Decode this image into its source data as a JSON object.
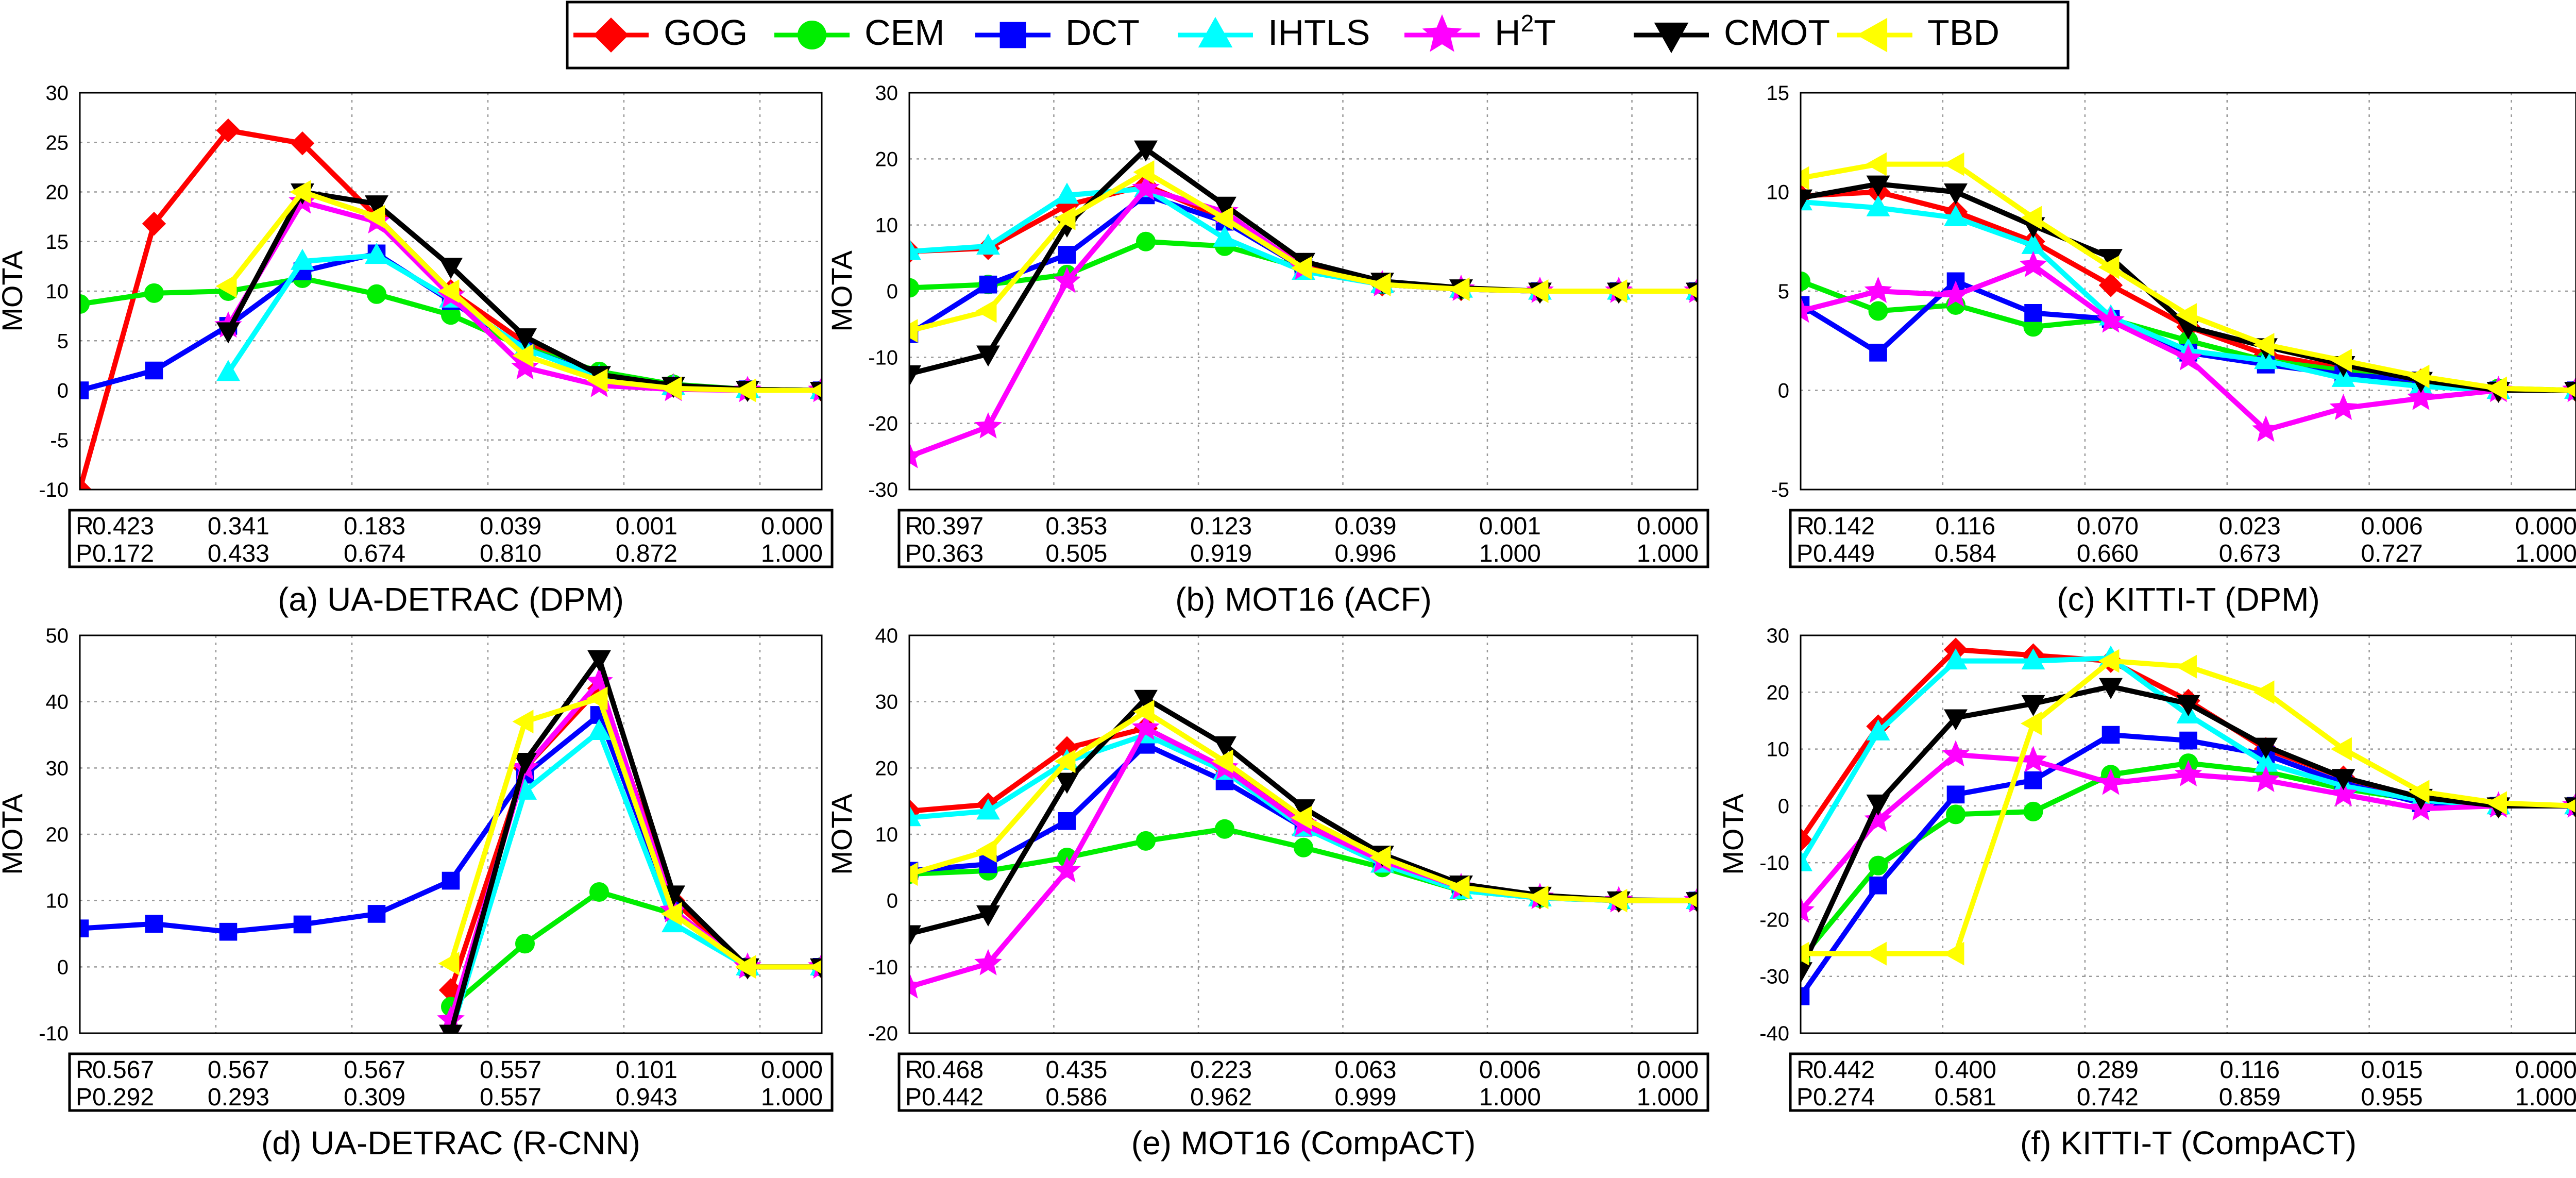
{
  "legend": {
    "entries": [
      {
        "name": "GOG",
        "color": "#ff0000",
        "marker": "diamond"
      },
      {
        "name": "CEM",
        "color": "#00ee00",
        "marker": "circle"
      },
      {
        "name": "DCT",
        "color": "#0000ff",
        "marker": "square"
      },
      {
        "name": "IHTLS",
        "color": "#00ffff",
        "marker": "triangle-up"
      },
      {
        "name": "H2T",
        "base": "H",
        "sup": "2",
        "tail": "T",
        "color": "#ff00ff",
        "marker": "star"
      },
      {
        "name": "CMOT",
        "color": "#000000",
        "marker": "triangle-down"
      },
      {
        "name": "TBD",
        "color": "#ffff00",
        "marker": "triangle-left"
      }
    ]
  },
  "chart_data": [
    {
      "type": "line",
      "title": "(a) UA-DETRAC (DPM)",
      "ylabel": "MOTA",
      "ylim": [
        -10,
        30
      ],
      "yticks": [
        -10,
        -5,
        0,
        5,
        10,
        15,
        20,
        25,
        30
      ],
      "x": [
        1,
        2,
        3,
        4,
        5,
        6,
        7,
        8,
        9,
        10,
        11
      ],
      "xlim": [
        1,
        11
      ],
      "xgrid": [
        1,
        2.833,
        4.667,
        6.5,
        8.333,
        10.167
      ],
      "table": {
        "R": {
          "label": "R",
          "values": [
            "0.423",
            "0.341",
            "0.183",
            "0.039",
            "0.001",
            "0.000"
          ]
        },
        "P": {
          "label": "P",
          "values": [
            "0.172",
            "0.433",
            "0.674",
            "0.810",
            "0.872",
            "1.000"
          ]
        }
      },
      "series": [
        {
          "name": "GOG",
          "values": [
            -10,
            16.8,
            26.2,
            24.9,
            17.5,
            10,
            4.8,
            1.6,
            0.5,
            0.1,
            0
          ]
        },
        {
          "name": "CEM",
          "values": [
            8.7,
            9.8,
            10,
            11.3,
            9.7,
            7.6,
            4.3,
            1.9,
            0.6,
            0.1,
            0
          ]
        },
        {
          "name": "DCT",
          "values": [
            0,
            2,
            6.5,
            12,
            13.8,
            9,
            4.2,
            1.5,
            0.4,
            0.1,
            0
          ]
        },
        {
          "name": "IHTLS",
          "values": [
            null,
            null,
            1.8,
            13,
            13.6,
            9.2,
            4.2,
            1.4,
            0.4,
            0.1,
            0
          ]
        },
        {
          "name": "H2T",
          "values": [
            null,
            null,
            6.5,
            19,
            17,
            9.5,
            2.3,
            0.5,
            0.1,
            0,
            0
          ]
        },
        {
          "name": "CMOT",
          "values": [
            null,
            null,
            6,
            20,
            18.8,
            12.5,
            5.4,
            1.6,
            0.5,
            0.1,
            0
          ]
        },
        {
          "name": "TBD",
          "values": [
            null,
            null,
            10.5,
            20,
            17.5,
            10,
            3.5,
            1,
            0.2,
            0,
            0
          ]
        }
      ]
    },
    {
      "type": "line",
      "title": "(b) MOT16 (ACF)",
      "ylabel": "MOTA",
      "ylim": [
        -30,
        30
      ],
      "yticks": [
        -30,
        -20,
        -10,
        0,
        10,
        20,
        30
      ],
      "x": [
        1,
        2,
        3,
        4,
        5,
        6,
        7,
        8,
        9,
        10,
        11
      ],
      "xlim": [
        1,
        11
      ],
      "xgrid": [
        1,
        2.833,
        4.667,
        6.5,
        8.333,
        10.167
      ],
      "table": {
        "R": {
          "label": "R",
          "values": [
            "0.397",
            "0.353",
            "0.123",
            "0.039",
            "0.001",
            "0.000"
          ]
        },
        "P": {
          "label": "P",
          "values": [
            "0.363",
            "0.505",
            "0.919",
            "0.996",
            "1.000",
            "1.000"
          ]
        }
      },
      "series": [
        {
          "name": "GOG",
          "values": [
            6,
            6.5,
            13,
            16,
            11,
            4,
            1,
            0.3,
            0,
            0,
            0
          ]
        },
        {
          "name": "CEM",
          "values": [
            0.5,
            1,
            2.5,
            7.5,
            6.8,
            3.5,
            1,
            0.3,
            0,
            0,
            0
          ]
        },
        {
          "name": "DCT",
          "values": [
            -6.5,
            1,
            5.5,
            14.5,
            10.5,
            3.5,
            1,
            0.3,
            0,
            0,
            0
          ]
        },
        {
          "name": "IHTLS",
          "values": [
            6,
            6.8,
            14.5,
            15.5,
            8,
            3,
            1,
            0.3,
            0,
            0,
            0
          ]
        },
        {
          "name": "H2T",
          "values": [
            -25,
            -20.5,
            1.5,
            15.5,
            12,
            3.5,
            1,
            0.3,
            0,
            0,
            0
          ]
        },
        {
          "name": "CMOT",
          "values": [
            -12.5,
            -9.5,
            10,
            21.5,
            13,
            4.5,
            1.5,
            0.5,
            0,
            0,
            0
          ]
        },
        {
          "name": "TBD",
          "values": [
            -6,
            -3,
            11,
            18,
            11,
            3.5,
            1,
            0.3,
            0,
            0,
            0
          ]
        }
      ]
    },
    {
      "type": "line",
      "title": "(c) KITTI-T (DPM)",
      "ylabel": "",
      "ylim": [
        -5,
        15
      ],
      "yticks": [
        -5,
        0,
        5,
        10,
        15
      ],
      "x": [
        1,
        2,
        3,
        4,
        5,
        6,
        7,
        8,
        9,
        10,
        11
      ],
      "xlim": [
        1,
        11
      ],
      "xgrid": [
        1,
        2.833,
        4.667,
        6.5,
        8.333,
        10.167
      ],
      "table": {
        "R": {
          "label": "R",
          "values": [
            "0.142",
            "0.116",
            "0.070",
            "0.023",
            "0.006",
            "0.000"
          ]
        },
        "P": {
          "label": "P",
          "values": [
            "0.449",
            "0.584",
            "0.660",
            "0.673",
            "0.727",
            "1.000"
          ]
        }
      },
      "series": [
        {
          "name": "GOG",
          "values": [
            9.8,
            10,
            9,
            7.5,
            5.3,
            3.2,
            1.8,
            1.1,
            0.5,
            0,
            0
          ]
        },
        {
          "name": "CEM",
          "values": [
            5.5,
            4,
            4.3,
            3.2,
            3.6,
            2.5,
            1.5,
            1,
            0.3,
            0.1,
            0
          ]
        },
        {
          "name": "DCT",
          "values": [
            4.3,
            1.9,
            5.5,
            3.9,
            3.6,
            1.9,
            1.3,
            0.8,
            0.5,
            0,
            0
          ]
        },
        {
          "name": "IHTLS",
          "values": [
            9.5,
            9.2,
            8.7,
            7.3,
            3.7,
            2,
            1.5,
            0.6,
            0.2,
            0,
            0
          ]
        },
        {
          "name": "H2T",
          "values": [
            4,
            5,
            4.8,
            6.3,
            3.5,
            1.6,
            -2,
            -0.9,
            -0.4,
            0,
            0
          ]
        },
        {
          "name": "CMOT",
          "values": [
            9.7,
            10.4,
            10,
            8.3,
            6.7,
            3.2,
            2.2,
            1.3,
            0.5,
            0,
            0
          ]
        },
        {
          "name": "TBD",
          "values": [
            10.7,
            11.4,
            11.4,
            8.7,
            6.2,
            3.8,
            2.3,
            1.5,
            0.7,
            0.1,
            0
          ]
        }
      ]
    },
    {
      "type": "line",
      "title": "(d) UA-DETRAC (R-CNN)",
      "ylabel": "MOTA",
      "ylim": [
        -10,
        50
      ],
      "yticks": [
        -10,
        0,
        10,
        20,
        30,
        40,
        50
      ],
      "x": [
        1,
        2,
        3,
        4,
        5,
        6,
        7,
        8,
        9,
        10,
        11
      ],
      "xlim": [
        1,
        11
      ],
      "xgrid": [
        1,
        2.833,
        4.667,
        6.5,
        8.333,
        10.167
      ],
      "table": {
        "R": {
          "label": "R",
          "values": [
            "0.567",
            "0.567",
            "0.567",
            "0.557",
            "0.101",
            "0.000"
          ]
        },
        "P": {
          "label": "P",
          "values": [
            "0.292",
            "0.293",
            "0.309",
            "0.557",
            "0.943",
            "1.000"
          ]
        }
      },
      "series": [
        {
          "name": "GOG",
          "values": [
            null,
            null,
            null,
            null,
            null,
            -3.5,
            30,
            42,
            10,
            0,
            0
          ]
        },
        {
          "name": "CEM",
          "values": [
            null,
            null,
            null,
            null,
            null,
            -6,
            3.5,
            11.3,
            8,
            0,
            0
          ]
        },
        {
          "name": "DCT",
          "values": [
            5.8,
            6.5,
            5.3,
            6.4,
            8,
            13,
            29,
            38,
            8.5,
            0,
            0
          ]
        },
        {
          "name": "IHTLS",
          "values": [
            null,
            null,
            null,
            null,
            null,
            -10,
            26.5,
            35.5,
            6.5,
            0,
            0
          ]
        },
        {
          "name": "H2T",
          "values": [
            null,
            null,
            null,
            null,
            null,
            -8,
            30,
            43,
            8.5,
            0,
            0
          ]
        },
        {
          "name": "CMOT",
          "values": [
            null,
            null,
            null,
            null,
            null,
            -10,
            31,
            46.5,
            11,
            0,
            0
          ]
        },
        {
          "name": "TBD",
          "values": [
            null,
            null,
            null,
            null,
            null,
            0.5,
            37,
            40.5,
            8,
            0,
            0
          ]
        }
      ]
    },
    {
      "type": "line",
      "title": "(e) MOT16 (CompACT)",
      "ylabel": "MOTA",
      "ylim": [
        -20,
        40
      ],
      "yticks": [
        -20,
        -10,
        0,
        10,
        20,
        30,
        40
      ],
      "x": [
        1,
        2,
        3,
        4,
        5,
        6,
        7,
        8,
        9,
        10,
        11
      ],
      "xlim": [
        1,
        11
      ],
      "xgrid": [
        1,
        2.833,
        4.667,
        6.5,
        8.333,
        10.167
      ],
      "table": {
        "R": {
          "label": "R",
          "values": [
            "0.468",
            "0.435",
            "0.223",
            "0.063",
            "0.006",
            "0.000"
          ]
        },
        "P": {
          "label": "P",
          "values": [
            "0.442",
            "0.586",
            "0.962",
            "0.999",
            "1.000",
            "1.000"
          ]
        }
      },
      "series": [
        {
          "name": "GOG",
          "values": [
            13.5,
            14.5,
            23,
            26,
            20,
            12,
            6,
            2,
            0.5,
            0,
            0
          ]
        },
        {
          "name": "CEM",
          "values": [
            4,
            4.5,
            6.5,
            9,
            10.8,
            8,
            5,
            1.5,
            0.4,
            0,
            0
          ]
        },
        {
          "name": "DCT",
          "values": [
            4.5,
            5.5,
            12,
            23.5,
            18,
            11,
            6,
            2,
            0.5,
            0,
            0
          ]
        },
        {
          "name": "IHTLS",
          "values": [
            12.5,
            13.5,
            21,
            25,
            19.5,
            11,
            5.5,
            1.5,
            0.4,
            0,
            0
          ]
        },
        {
          "name": "H2T",
          "values": [
            -13,
            -9.5,
            4.5,
            26,
            20,
            11.5,
            6,
            2,
            0.5,
            0,
            0
          ]
        },
        {
          "name": "CMOT",
          "values": [
            -5,
            -2,
            18,
            30.5,
            23.5,
            14,
            7,
            2.5,
            0.8,
            0.1,
            0
          ]
        },
        {
          "name": "TBD",
          "values": [
            4,
            7.5,
            21,
            28.5,
            21,
            12.5,
            6.5,
            2,
            0.5,
            0,
            0
          ]
        }
      ]
    },
    {
      "type": "line",
      "title": "(f) KITTI-T (CompACT)",
      "ylabel": "MOTA",
      "ylim": [
        -40,
        30
      ],
      "yticks": [
        -40,
        -30,
        -20,
        -10,
        0,
        10,
        20,
        30
      ],
      "x": [
        1,
        2,
        3,
        4,
        5,
        6,
        7,
        8,
        9,
        10,
        11
      ],
      "xlim": [
        1,
        11
      ],
      "xgrid": [
        1,
        2.833,
        4.667,
        6.5,
        8.333,
        10.167
      ],
      "table": {
        "R": {
          "label": "R",
          "values": [
            "0.442",
            "0.400",
            "0.289",
            "0.116",
            "0.015",
            "0.000"
          ]
        },
        "P": {
          "label": "P",
          "values": [
            "0.274",
            "0.581",
            "0.742",
            "0.859",
            "0.955",
            "1.000"
          ]
        }
      },
      "series": [
        {
          "name": "GOG",
          "values": [
            -6,
            14,
            27.5,
            26.5,
            25.5,
            18.5,
            10,
            5,
            1,
            0,
            0
          ]
        },
        {
          "name": "CEM",
          "values": [
            -27,
            -10.5,
            -1.5,
            -1,
            5.5,
            7.5,
            6,
            3,
            1,
            0,
            0
          ]
        },
        {
          "name": "DCT",
          "values": [
            -33.5,
            -14,
            2,
            4.5,
            12.5,
            11.5,
            9,
            4,
            0.5,
            0,
            0
          ]
        },
        {
          "name": "IHTLS",
          "values": [
            -10,
            13,
            25.5,
            25.5,
            26,
            16,
            7.5,
            3.5,
            1,
            0,
            0
          ]
        },
        {
          "name": "H2T",
          "values": [
            -18.5,
            -2.5,
            9,
            8,
            4,
            5.5,
            4.5,
            2,
            -0.5,
            0,
            0
          ]
        },
        {
          "name": "CMOT",
          "values": [
            -29,
            0.5,
            15.5,
            18,
            21,
            18,
            10.5,
            5,
            1.5,
            0,
            0
          ]
        },
        {
          "name": "TBD",
          "values": [
            -26,
            -26,
            -26,
            14.5,
            25.5,
            24.5,
            20,
            10,
            2.5,
            0.5,
            0
          ]
        }
      ]
    }
  ]
}
